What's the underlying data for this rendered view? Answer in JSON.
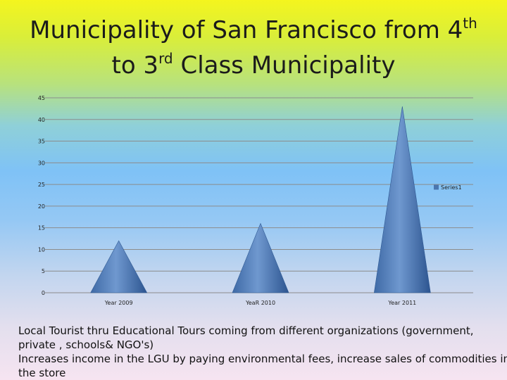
{
  "title": {
    "line1_main": "Municipality of San Francisco from 4",
    "line1_sup": "th",
    "line2_pre": "to 3",
    "line2_sup": "rd",
    "line2_post": " Class Municipality"
  },
  "chart_data": {
    "type": "bar",
    "bar_shape": "cone",
    "categories": [
      "Year 2009",
      "YeaR 2010",
      "Year 2011"
    ],
    "series": [
      {
        "name": "Series1",
        "values": [
          12,
          16,
          43
        ],
        "color": "#4a76b0"
      }
    ],
    "ylim": [
      0,
      45
    ],
    "yticks": [
      0,
      5,
      10,
      15,
      20,
      25,
      30,
      35,
      40,
      45
    ],
    "grid": true,
    "legend_position": "right"
  },
  "caption": {
    "line1": "Local Tourist thru Educational Tours coming from different organizations (government,",
    "line2": "private , schools& NGO's)",
    "line3": "Increases  income in the LGU  by paying environmental fees, increase sales of commodities in",
    "line4": "the store"
  }
}
